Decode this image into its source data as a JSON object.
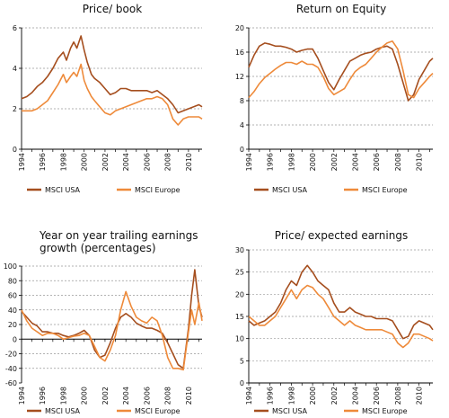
{
  "colors": {
    "usa": "#a54e1e",
    "europe": "#ee8a3a",
    "axis": "#000000",
    "grid": "#999999"
  },
  "chart_data": [
    {
      "type": "line",
      "title": [
        "Price/ book"
      ],
      "ylim": [
        0,
        6
      ],
      "yticks": [
        "0",
        "2",
        "4",
        "6"
      ],
      "ytick_values": [
        0,
        2,
        4,
        6
      ],
      "xlim": [
        1994,
        2011.3
      ],
      "xticks": [
        "1994",
        "1996",
        "1998",
        "2000",
        "2002",
        "2004",
        "2006",
        "2008",
        "2010"
      ],
      "grid": "horizontal-dashed",
      "legend": [
        "MSCI USA",
        "MSCI Europe"
      ],
      "series": [
        {
          "name": "MSCI USA",
          "color": "usa",
          "x": [
            1994,
            1994.5,
            1995,
            1995.5,
            1996,
            1996.5,
            1997,
            1997.5,
            1998,
            1998.3,
            1998.7,
            1999,
            1999.3,
            1999.7,
            2000,
            2000.3,
            2000.7,
            2001,
            2001.5,
            2002,
            2002.5,
            2003,
            2003.5,
            2004,
            2004.5,
            2005,
            2005.5,
            2006,
            2006.5,
            2007,
            2007.5,
            2008,
            2008.5,
            2009,
            2009.5,
            2010,
            2010.5,
            2011,
            2011.3
          ],
          "y": [
            2.5,
            2.6,
            2.8,
            3.1,
            3.3,
            3.6,
            4.0,
            4.5,
            4.8,
            4.4,
            5.0,
            5.3,
            5.0,
            5.6,
            4.9,
            4.3,
            3.7,
            3.5,
            3.3,
            3.0,
            2.7,
            2.8,
            3.0,
            3.0,
            2.9,
            2.9,
            2.9,
            2.9,
            2.8,
            2.9,
            2.7,
            2.5,
            2.2,
            1.8,
            1.9,
            2.0,
            2.1,
            2.2,
            2.1
          ]
        },
        {
          "name": "MSCI Europe",
          "color": "europe",
          "x": [
            1994,
            1994.5,
            1995,
            1995.5,
            1996,
            1996.5,
            1997,
            1997.5,
            1998,
            1998.3,
            1998.7,
            1999,
            1999.3,
            1999.7,
            2000,
            2000.3,
            2000.7,
            2001,
            2001.5,
            2002,
            2002.5,
            2003,
            2003.5,
            2004,
            2004.5,
            2005,
            2005.5,
            2006,
            2006.5,
            2007,
            2007.5,
            2008,
            2008.5,
            2009,
            2009.5,
            2010,
            2010.5,
            2011,
            2011.3
          ],
          "y": [
            1.9,
            1.9,
            1.9,
            2.0,
            2.2,
            2.4,
            2.8,
            3.2,
            3.7,
            3.3,
            3.6,
            3.8,
            3.6,
            4.2,
            3.4,
            3.0,
            2.6,
            2.4,
            2.1,
            1.8,
            1.7,
            1.9,
            2.0,
            2.1,
            2.2,
            2.3,
            2.4,
            2.5,
            2.5,
            2.6,
            2.5,
            2.2,
            1.5,
            1.2,
            1.5,
            1.6,
            1.6,
            1.6,
            1.5
          ]
        }
      ]
    },
    {
      "type": "line",
      "title": [
        "Return on Equity"
      ],
      "ylim": [
        0,
        20
      ],
      "yticks": [
        "0",
        "4",
        "8",
        "12",
        "16",
        "20"
      ],
      "ytick_values": [
        0,
        4,
        8,
        12,
        16,
        20
      ],
      "xlim": [
        1994,
        2011.3
      ],
      "xticks": [
        "1994",
        "1996",
        "1998",
        "2000",
        "2002",
        "2004",
        "2006",
        "2008",
        "2010"
      ],
      "grid": "horizontal-dashed",
      "legend": [
        "MSCI USA",
        "MSCI Europe"
      ],
      "series": [
        {
          "name": "MSCI USA",
          "color": "usa",
          "x": [
            1994,
            1994.5,
            1995,
            1995.5,
            1996,
            1996.5,
            1997,
            1997.5,
            1998,
            1998.5,
            1999,
            1999.5,
            2000,
            2000.5,
            2001,
            2001.5,
            2002,
            2002.5,
            2003,
            2003.5,
            2004,
            2004.5,
            2005,
            2005.5,
            2006,
            2006.5,
            2007,
            2007.5,
            2008,
            2008.5,
            2009,
            2009.5,
            2010,
            2010.5,
            2011,
            2011.3
          ],
          "y": [
            13.5,
            15.5,
            17.0,
            17.5,
            17.3,
            17.0,
            17.0,
            16.8,
            16.5,
            16.0,
            16.3,
            16.5,
            16.5,
            15.0,
            13.0,
            11.0,
            9.8,
            11.5,
            13.0,
            14.5,
            15.0,
            15.5,
            15.8,
            16.0,
            16.5,
            16.8,
            17.0,
            16.5,
            14.0,
            11.0,
            8.0,
            9.0,
            11.5,
            13.0,
            14.5,
            15.0
          ]
        },
        {
          "name": "MSCI Europe",
          "color": "europe",
          "x": [
            1994,
            1994.5,
            1995,
            1995.5,
            1996,
            1996.5,
            1997,
            1997.5,
            1998,
            1998.5,
            1999,
            1999.5,
            2000,
            2000.5,
            2001,
            2001.5,
            2002,
            2002.5,
            2003,
            2003.5,
            2004,
            2004.5,
            2005,
            2005.5,
            2006,
            2006.5,
            2007,
            2007.5,
            2008,
            2008.5,
            2009,
            2009.5,
            2010,
            2010.5,
            2011,
            2011.3
          ],
          "y": [
            8.5,
            9.5,
            10.8,
            11.8,
            12.5,
            13.2,
            13.8,
            14.3,
            14.3,
            14.0,
            14.5,
            14.0,
            14.0,
            13.5,
            12.0,
            10.0,
            9.0,
            9.5,
            10.0,
            11.5,
            12.8,
            13.5,
            14.0,
            15.0,
            16.0,
            16.8,
            17.5,
            17.8,
            16.5,
            13.0,
            9.0,
            8.5,
            10.0,
            11.0,
            12.0,
            12.5
          ]
        }
      ]
    },
    {
      "type": "line",
      "title": [
        "Year on year trailing earnings",
        "growth (percentages)"
      ],
      "ylim": [
        -60,
        100
      ],
      "yticks": [
        "-60",
        "-40",
        "-20",
        "0",
        "20",
        "40",
        "60",
        "80",
        "100"
      ],
      "ytick_values": [
        -60,
        -40,
        -20,
        0,
        20,
        40,
        60,
        80,
        100
      ],
      "xlim": [
        1994,
        2011.3
      ],
      "xticks": [
        "1994",
        "1996",
        "1998",
        "2000",
        "2002",
        "2004",
        "2006",
        "2008",
        "2010"
      ],
      "grid": "horizontal-dashed",
      "legend": [
        "MSCI USA",
        "MSCI Europe"
      ],
      "series": [
        {
          "name": "MSCI USA",
          "color": "usa",
          "x": [
            1994,
            1994.5,
            1995,
            1995.5,
            1996,
            1996.5,
            1997,
            1997.5,
            1998,
            1998.5,
            1999,
            1999.5,
            2000,
            2000.5,
            2001,
            2001.5,
            2002,
            2002.5,
            2003,
            2003.5,
            2004,
            2004.5,
            2005,
            2005.5,
            2006,
            2006.5,
            2007,
            2007.5,
            2008,
            2008.5,
            2009,
            2009.5,
            2010,
            2010.3,
            2010.6,
            2011,
            2011.3
          ],
          "y": [
            38,
            30,
            22,
            18,
            10,
            10,
            8,
            8,
            5,
            3,
            5,
            8,
            12,
            5,
            -15,
            -25,
            -22,
            -5,
            15,
            30,
            35,
            30,
            22,
            18,
            15,
            15,
            12,
            8,
            -5,
            -20,
            -35,
            -40,
            15,
            60,
            95,
            45,
            30
          ]
        },
        {
          "name": "MSCI Europe",
          "color": "europe",
          "x": [
            1994,
            1994.5,
            1995,
            1995.5,
            1996,
            1996.5,
            1997,
            1997.5,
            1998,
            1998.5,
            1999,
            1999.5,
            2000,
            2000.5,
            2001,
            2001.5,
            2002,
            2002.5,
            2003,
            2003.5,
            2004,
            2004.5,
            2005,
            2005.5,
            2006,
            2006.5,
            2007,
            2007.5,
            2008,
            2008.5,
            2009,
            2009.5,
            2010,
            2010.3,
            2010.6,
            2011,
            2011.3
          ],
          "y": [
            40,
            25,
            15,
            10,
            5,
            8,
            8,
            5,
            0,
            2,
            4,
            5,
            8,
            5,
            -10,
            -25,
            -30,
            -15,
            5,
            40,
            65,
            45,
            30,
            25,
            22,
            30,
            25,
            5,
            -25,
            -40,
            -40,
            -42,
            10,
            40,
            20,
            50,
            25
          ]
        }
      ]
    },
    {
      "type": "line",
      "title": [
        "Price/ expected earnings"
      ],
      "ylim": [
        0,
        30
      ],
      "yticks": [
        "0",
        "5",
        "10",
        "15",
        "20",
        "25",
        "30"
      ],
      "ytick_values": [
        0,
        5,
        10,
        15,
        20,
        25,
        30
      ],
      "xlim": [
        1994,
        2011.3
      ],
      "xticks": [
        "1994",
        "1996",
        "1998",
        "2000",
        "2002",
        "2004",
        "2006",
        "2008",
        "2010"
      ],
      "grid": "horizontal-dashed",
      "legend": [
        "MSCI USA",
        "MSCI Europe"
      ],
      "series": [
        {
          "name": "MSCI USA",
          "color": "usa",
          "x": [
            1994,
            1994.5,
            1995,
            1995.5,
            1996,
            1996.5,
            1997,
            1997.5,
            1998,
            1998.5,
            1999,
            1999.5,
            2000,
            2000.5,
            2001,
            2001.5,
            2002,
            2002.5,
            2003,
            2003.5,
            2004,
            2004.5,
            2005,
            2005.5,
            2006,
            2006.5,
            2007,
            2007.5,
            2008,
            2008.5,
            2009,
            2009.5,
            2010,
            2010.5,
            2011,
            2011.3
          ],
          "y": [
            14,
            13,
            13.5,
            14,
            15,
            16,
            18,
            21,
            23,
            22,
            25,
            26.5,
            25,
            23,
            22,
            21,
            18,
            16,
            16,
            17,
            16,
            15.5,
            15,
            15,
            14.5,
            14.5,
            14.5,
            14,
            12,
            10,
            10.5,
            13,
            14,
            13.5,
            13,
            12
          ]
        },
        {
          "name": "MSCI Europe",
          "color": "europe",
          "x": [
            1994,
            1994.5,
            1995,
            1995.5,
            1996,
            1996.5,
            1997,
            1997.5,
            1998,
            1998.5,
            1999,
            1999.5,
            2000,
            2000.5,
            2001,
            2001.5,
            2002,
            2002.5,
            2003,
            2003.5,
            2004,
            2004.5,
            2005,
            2005.5,
            2006,
            2006.5,
            2007,
            2007.5,
            2008,
            2008.5,
            2009,
            2009.5,
            2010,
            2010.5,
            2011,
            2011.3
          ],
          "y": [
            15,
            14,
            13,
            13,
            14,
            15,
            17,
            19,
            21,
            19,
            21,
            22,
            21.5,
            20,
            19,
            17,
            15,
            14,
            13,
            14,
            13,
            12.5,
            12,
            12,
            12,
            12,
            11.5,
            11,
            9,
            8,
            9,
            11,
            11,
            10.5,
            10,
            9.5
          ]
        }
      ]
    }
  ]
}
